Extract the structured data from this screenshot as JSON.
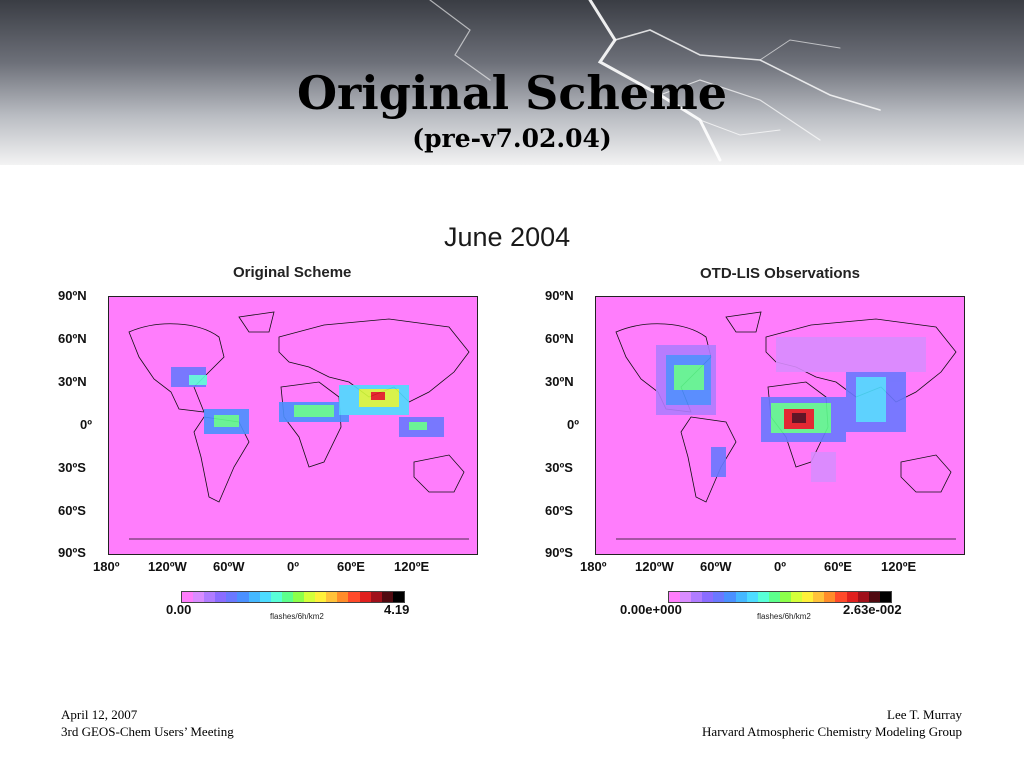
{
  "slide": {
    "title": "Original Scheme",
    "subtitle": "(pre-v7.02.04)"
  },
  "figure": {
    "title": "June 2004",
    "left_map": {
      "title": "Original Scheme",
      "colorbar_min": "0.00",
      "colorbar_max": "4.19",
      "units": "flashes/6h/km2"
    },
    "right_map": {
      "title": "OTD-LIS Observations",
      "colorbar_min": "0.00e+000",
      "colorbar_max": "2.63e-002",
      "units": "flashes/6h/km2"
    },
    "lat_labels": [
      "90ºN",
      "60ºN",
      "30ºN",
      "0º",
      "30ºS",
      "60ºS",
      "90ºS"
    ],
    "lon_labels": [
      "180º",
      "120ºW",
      "60ºW",
      "0º",
      "60ºE",
      "120ºE"
    ],
    "colorbar_colors": [
      "#ff7dfc",
      "#d98cff",
      "#b07cff",
      "#8a6cff",
      "#6a78ff",
      "#4a90ff",
      "#45b8ff",
      "#4ddcff",
      "#58ffd8",
      "#5cff8c",
      "#8cff4a",
      "#d4ff3a",
      "#fff03a",
      "#ffc23a",
      "#ff8c2a",
      "#ff4a2a",
      "#e0201e",
      "#a0101a",
      "#500a10",
      "#000000"
    ],
    "map_background_color": "#ff7dfc"
  },
  "footer": {
    "date": "April 12, 2007",
    "meeting": "3rd GEOS-Chem Users’ Meeting",
    "author": "Lee T. Murray",
    "group": "Harvard Atmospheric Chemistry Modeling Group"
  }
}
